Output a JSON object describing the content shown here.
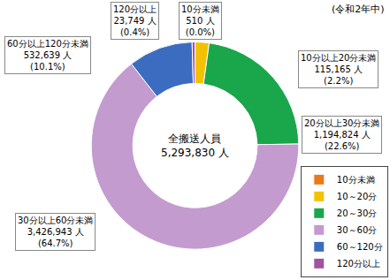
{
  "chart_data": {
    "type": "pie",
    "note": "(令和2年中)",
    "center_label": "全搬送人員",
    "total_label": "5,293,830 人",
    "categories": [
      "10分未満",
      "10～20分",
      "20～30分",
      "30～60分",
      "60～120分",
      "120分以上"
    ],
    "slice_labels": [
      "10分未満",
      "10分以上20分未満",
      "20分以上30分未満",
      "30分以上60分未満",
      "60分以上120分未満",
      "120分以上"
    ],
    "values": [
      510,
      115165,
      1194824,
      3426943,
      532639,
      23749
    ],
    "value_labels": [
      "510 人",
      "115,165 人",
      "1,194,824 人",
      "3,426,943 人",
      "532,639 人",
      "23,749 人"
    ],
    "percent_labels": [
      "(0.0%)",
      "(2.2%)",
      "(22.6%)",
      "(64.7%)",
      "(10.1%)",
      "(0.4%)"
    ],
    "colors": [
      "#e87a1c",
      "#f2c200",
      "#1aa64a",
      "#c39bcf",
      "#3b6cc0",
      "#a3529f"
    ],
    "data_labels": true,
    "legend": "bottom right"
  }
}
